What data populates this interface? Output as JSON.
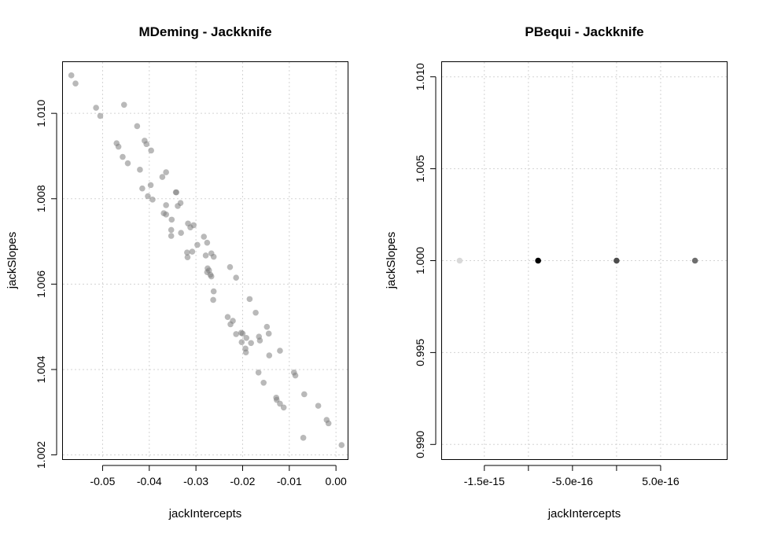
{
  "chart_data": [
    {
      "type": "scatter",
      "title": "MDeming - Jackknife",
      "xlabel": "jackIntercepts",
      "ylabel": "jackSlopes",
      "xlim": [
        -0.0585,
        0.0025
      ],
      "ylim": [
        1.0019,
        1.0112
      ],
      "xticks": [
        -0.05,
        -0.04,
        -0.03,
        -0.02,
        -0.01,
        0.0
      ],
      "xtick_labels": [
        "-0.05",
        "-0.04",
        "-0.03",
        "-0.02",
        "-0.01",
        "0.00"
      ],
      "yticks": [
        1.002,
        1.004,
        1.006,
        1.008,
        1.01
      ],
      "ytick_labels": [
        "1.002",
        "1.004",
        "1.006",
        "1.008",
        "1.010"
      ],
      "grid": true,
      "point_color": "#808080",
      "point_opacity": 0.55,
      "points": [
        {
          "x": -0.0567,
          "y": 1.01089
        },
        {
          "x": -0.0558,
          "y": 1.0107
        },
        {
          "x": -0.0514,
          "y": 1.01013
        },
        {
          "x": -0.0505,
          "y": 1.00994
        },
        {
          "x": -0.0454,
          "y": 1.0102
        },
        {
          "x": -0.0426,
          "y": 1.0097
        },
        {
          "x": -0.041,
          "y": 1.00936
        },
        {
          "x": -0.0406,
          "y": 1.00928
        },
        {
          "x": -0.0396,
          "y": 1.00913
        },
        {
          "x": -0.047,
          "y": 1.0093
        },
        {
          "x": -0.0466,
          "y": 1.00922
        },
        {
          "x": -0.0457,
          "y": 1.00898
        },
        {
          "x": -0.0446,
          "y": 1.00883
        },
        {
          "x": -0.042,
          "y": 1.00868
        },
        {
          "x": -0.0364,
          "y": 1.00862
        },
        {
          "x": -0.0372,
          "y": 1.00851
        },
        {
          "x": -0.0397,
          "y": 1.00832
        },
        {
          "x": -0.0415,
          "y": 1.00824
        },
        {
          "x": -0.0343,
          "y": 1.00815
        },
        {
          "x": -0.0342,
          "y": 1.00815
        },
        {
          "x": -0.0403,
          "y": 1.00806
        },
        {
          "x": -0.0393,
          "y": 1.00798
        },
        {
          "x": -0.0333,
          "y": 1.0079
        },
        {
          "x": -0.0364,
          "y": 1.00785
        },
        {
          "x": -0.0339,
          "y": 1.00783
        },
        {
          "x": -0.0369,
          "y": 1.00766
        },
        {
          "x": -0.0364,
          "y": 1.00763
        },
        {
          "x": -0.0352,
          "y": 1.00751
        },
        {
          "x": -0.0317,
          "y": 1.00742
        },
        {
          "x": -0.0305,
          "y": 1.00738
        },
        {
          "x": -0.0312,
          "y": 1.00733
        },
        {
          "x": -0.0353,
          "y": 1.00727
        },
        {
          "x": -0.0332,
          "y": 1.0072
        },
        {
          "x": -0.0353,
          "y": 1.00713
        },
        {
          "x": -0.0283,
          "y": 1.00711
        },
        {
          "x": -0.0276,
          "y": 1.00697
        },
        {
          "x": -0.0297,
          "y": 1.00692
        },
        {
          "x": -0.0319,
          "y": 1.00674
        },
        {
          "x": -0.0308,
          "y": 1.00676
        },
        {
          "x": -0.0267,
          "y": 1.00672
        },
        {
          "x": -0.0262,
          "y": 1.00664
        },
        {
          "x": -0.0279,
          "y": 1.00667
        },
        {
          "x": -0.0318,
          "y": 1.00663
        },
        {
          "x": -0.0227,
          "y": 1.0064
        },
        {
          "x": -0.0275,
          "y": 1.00637
        },
        {
          "x": -0.0272,
          "y": 1.00632
        },
        {
          "x": -0.0276,
          "y": 1.00628
        },
        {
          "x": -0.0269,
          "y": 1.00622
        },
        {
          "x": -0.0267,
          "y": 1.00618
        },
        {
          "x": -0.0214,
          "y": 1.00615
        },
        {
          "x": -0.0262,
          "y": 1.00583
        },
        {
          "x": -0.0263,
          "y": 1.00563
        },
        {
          "x": -0.0185,
          "y": 1.00565
        },
        {
          "x": -0.0172,
          "y": 1.00533
        },
        {
          "x": -0.0232,
          "y": 1.00523
        },
        {
          "x": -0.0221,
          "y": 1.00514
        },
        {
          "x": -0.0226,
          "y": 1.00506
        },
        {
          "x": -0.0148,
          "y": 1.005
        },
        {
          "x": -0.0203,
          "y": 1.00486
        },
        {
          "x": -0.0214,
          "y": 1.00483
        },
        {
          "x": -0.0144,
          "y": 1.00484
        },
        {
          "x": -0.02,
          "y": 1.00484
        },
        {
          "x": -0.0165,
          "y": 1.00477
        },
        {
          "x": -0.0192,
          "y": 1.00474
        },
        {
          "x": -0.0163,
          "y": 1.00468
        },
        {
          "x": -0.0202,
          "y": 1.00464
        },
        {
          "x": -0.0182,
          "y": 1.00462
        },
        {
          "x": -0.012,
          "y": 1.00444
        },
        {
          "x": -0.0194,
          "y": 1.00449
        },
        {
          "x": -0.0193,
          "y": 1.0044
        },
        {
          "x": -0.0143,
          "y": 1.00433
        },
        {
          "x": -0.009,
          "y": 1.00393
        },
        {
          "x": -0.0166,
          "y": 1.00393
        },
        {
          "x": -0.0087,
          "y": 1.00386
        },
        {
          "x": -0.0155,
          "y": 1.00369
        },
        {
          "x": -0.0068,
          "y": 1.00342
        },
        {
          "x": -0.0128,
          "y": 1.00334
        },
        {
          "x": -0.0127,
          "y": 1.00329
        },
        {
          "x": -0.012,
          "y": 1.0032
        },
        {
          "x": -0.0112,
          "y": 1.00311
        },
        {
          "x": -0.0038,
          "y": 1.00315
        },
        {
          "x": -0.002,
          "y": 1.00282
        },
        {
          "x": -0.0016,
          "y": 1.00274
        },
        {
          "x": -0.007,
          "y": 1.0024
        },
        {
          "x": 0.0012,
          "y": 1.00223
        }
      ]
    },
    {
      "type": "scatter",
      "title": "PBequi - Jackknife",
      "xlabel": "jackIntercepts",
      "ylabel": "jackSlopes",
      "xlim": [
        -1.98e-15,
        1.25e-15
      ],
      "ylim": [
        0.9892,
        1.0108
      ],
      "xticks": [
        -1.5e-15,
        -5e-16,
        5e-16
      ],
      "xtick_labels": [
        "-1.5e-15",
        "-5.0e-16",
        "5.0e-16"
      ],
      "xticks_unlabeled": [
        -1e-15,
        0.0
      ],
      "yticks": [
        0.99,
        0.995,
        1.0,
        1.005,
        1.01
      ],
      "ytick_labels": [
        "0.990",
        "0.995",
        "1.000",
        "1.005",
        "1.010"
      ],
      "grid": true,
      "points": [
        {
          "x": -1.78e-15,
          "y": 1.0,
          "color": "#d9d9d9"
        },
        {
          "x": -8.9e-16,
          "y": 1.0,
          "color": "#000000"
        },
        {
          "x": 0.0,
          "y": 1.0,
          "color": "#4d4d4d"
        },
        {
          "x": 8.9e-16,
          "y": 1.0,
          "color": "#6e6e6e"
        }
      ]
    }
  ]
}
